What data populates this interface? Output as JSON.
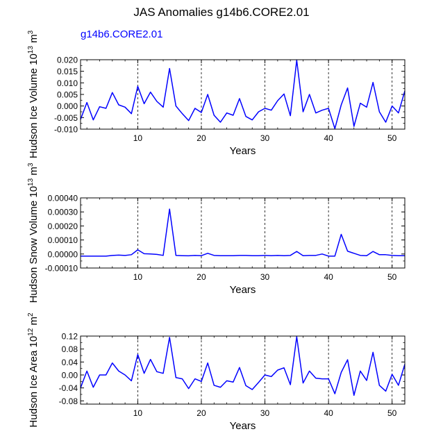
{
  "figure": {
    "title": "JAS Anomalies g14b6.CORE2.01",
    "case_label": "g14b6.CORE2.01",
    "case_label_color": "#0000ff",
    "line_color": "#0000ff"
  },
  "chart_data": [
    {
      "type": "line",
      "title": "",
      "xlabel": "Years",
      "ylabel": "Hudson Ice Volume",
      "ylabel_unit": "10",
      "ylabel_exp": "13",
      "ylabel_unit_tail": " m",
      "ylabel_unit_tail_exp": "3",
      "xlim": [
        1,
        52
      ],
      "ylim": [
        -0.01,
        0.02
      ],
      "xticks": [
        10,
        20,
        30,
        40,
        50
      ],
      "xtick_labels": [
        "10",
        "20",
        "30",
        "40",
        "50"
      ],
      "yticks": [
        -0.01,
        -0.005,
        0.0,
        0.005,
        0.01,
        0.015,
        0.02
      ],
      "ytick_labels": [
        "-0.010",
        "-0.005",
        "0.000",
        "0.005",
        "0.010",
        "0.015",
        "0.020"
      ],
      "x_gridlines": [
        10,
        20,
        30,
        40,
        50
      ],
      "series": [
        {
          "name": "g14b6.CORE2.01",
          "x": [
            1,
            2,
            3,
            4,
            5,
            6,
            7,
            8,
            9,
            10,
            11,
            12,
            13,
            14,
            15,
            16,
            17,
            18,
            19,
            20,
            21,
            22,
            23,
            24,
            25,
            26,
            27,
            28,
            29,
            30,
            31,
            32,
            33,
            34,
            35,
            36,
            37,
            38,
            39,
            40,
            41,
            42,
            43,
            44,
            45,
            46,
            47,
            48,
            49,
            50,
            51,
            52
          ],
          "values": [
            -0.0058,
            0.0015,
            -0.006,
            -0.0003,
            -0.001,
            0.0058,
            0.0005,
            -0.0005,
            -0.0033,
            0.0085,
            0.001,
            0.006,
            0.002,
            -0.0005,
            0.0162,
            0.0,
            -0.0033,
            -0.0063,
            -0.001,
            -0.0028,
            0.005,
            -0.004,
            -0.007,
            -0.003,
            -0.004,
            0.0032,
            -0.0045,
            -0.006,
            -0.0025,
            -0.001,
            -0.0018,
            0.0023,
            0.0052,
            -0.0042,
            0.0198,
            -0.0025,
            0.005,
            -0.003,
            -0.0018,
            -0.001,
            -0.0098,
            0.0005,
            0.0078,
            -0.0088,
            0.0012,
            -0.0005,
            0.0102,
            -0.0025,
            -0.007,
            0.0,
            -0.003,
            0.0065
          ]
        }
      ]
    },
    {
      "type": "line",
      "title": "",
      "xlabel": "Years",
      "ylabel": "Hudson Snow Volume",
      "ylabel_unit": "10",
      "ylabel_exp": "13",
      "ylabel_unit_tail": " m",
      "ylabel_unit_tail_exp": "3",
      "xlim": [
        1,
        52
      ],
      "ylim": [
        -0.0001,
        0.0004
      ],
      "xticks": [
        10,
        20,
        30,
        40,
        50
      ],
      "xtick_labels": [
        "10",
        "20",
        "30",
        "40",
        "50"
      ],
      "yticks": [
        -0.0001,
        0.0,
        0.0001,
        0.0002,
        0.0003,
        0.0004
      ],
      "ytick_labels": [
        "-0.00010",
        "0.00000",
        "0.00010",
        "0.00020",
        "0.00030",
        "0.00040"
      ],
      "x_gridlines": [
        10,
        20,
        30,
        40,
        50
      ],
      "series": [
        {
          "name": "g14b6.CORE2.01",
          "x": [
            1,
            2,
            3,
            4,
            5,
            6,
            7,
            8,
            9,
            10,
            11,
            12,
            13,
            14,
            15,
            16,
            17,
            18,
            19,
            20,
            21,
            22,
            23,
            24,
            25,
            26,
            27,
            28,
            29,
            30,
            31,
            32,
            33,
            34,
            35,
            36,
            37,
            38,
            39,
            40,
            41,
            42,
            43,
            44,
            45,
            46,
            47,
            48,
            49,
            50,
            51,
            52
          ],
          "values": [
            -1.5e-05,
            -1.5e-05,
            -1.5e-05,
            -1.5e-05,
            -1.5e-05,
            -1e-05,
            -8e-06,
            -1e-05,
            -5e-06,
            3e-05,
            2e-06,
            0.0,
            -3e-06,
            -1e-05,
            0.00032,
            -1e-05,
            -1.2e-05,
            -1.3e-05,
            -1e-05,
            -1.2e-05,
            5e-06,
            -1e-05,
            -1.2e-05,
            -1.2e-05,
            -1.2e-05,
            -1e-05,
            -1e-05,
            -1.2e-05,
            -1.2e-05,
            -1e-05,
            -1.2e-05,
            -1e-05,
            -1.2e-05,
            -1e-05,
            1.8e-05,
            -1.2e-05,
            -1e-05,
            -1e-05,
            0.0,
            -1.5e-05,
            -1.5e-05,
            0.00014,
            2e-05,
            5e-06,
            -1e-05,
            -1.2e-05,
            1.8e-05,
            -5e-06,
            -5e-06,
            -1e-05,
            -1.2e-05,
            -1.2e-05
          ]
        }
      ]
    },
    {
      "type": "line",
      "title": "",
      "xlabel": "Years",
      "ylabel": "Hudson Ice Area",
      "ylabel_unit": "10",
      "ylabel_exp": "12",
      "ylabel_unit_tail": " m",
      "ylabel_unit_tail_exp": "2",
      "xlim": [
        1,
        52
      ],
      "ylim": [
        -0.09,
        0.12
      ],
      "xticks": [
        10,
        20,
        30,
        40,
        50
      ],
      "xtick_labels": [
        "10",
        "20",
        "30",
        "40",
        "50"
      ],
      "yticks": [
        -0.08,
        -0.04,
        0.0,
        0.04,
        0.08,
        0.12
      ],
      "ytick_labels": [
        "-0.08",
        "-0.04",
        "0.00",
        "0.04",
        "0.08",
        "0.12"
      ],
      "x_gridlines": [
        10,
        20,
        30,
        40,
        50
      ],
      "series": [
        {
          "name": "g14b6.CORE2.01",
          "x": [
            1,
            2,
            3,
            4,
            5,
            6,
            7,
            8,
            9,
            10,
            11,
            12,
            13,
            14,
            15,
            16,
            17,
            18,
            19,
            20,
            21,
            22,
            23,
            24,
            25,
            26,
            27,
            28,
            29,
            30,
            31,
            32,
            33,
            34,
            35,
            36,
            37,
            38,
            39,
            40,
            41,
            42,
            43,
            44,
            45,
            46,
            47,
            48,
            49,
            50,
            51,
            52
          ],
          "values": [
            -0.04,
            0.012,
            -0.038,
            0.0,
            0.0,
            0.037,
            0.012,
            0.0,
            -0.018,
            0.063,
            0.005,
            0.048,
            0.01,
            0.005,
            0.116,
            -0.008,
            -0.012,
            -0.042,
            -0.012,
            -0.02,
            0.037,
            -0.032,
            -0.038,
            -0.018,
            -0.022,
            0.023,
            -0.033,
            -0.045,
            -0.023,
            0.0,
            -0.005,
            0.015,
            0.022,
            -0.03,
            0.118,
            -0.025,
            0.012,
            -0.01,
            -0.012,
            -0.012,
            -0.058,
            0.008,
            0.047,
            -0.063,
            0.012,
            -0.017,
            0.07,
            -0.032,
            -0.05,
            0.002,
            -0.032,
            0.033
          ]
        }
      ]
    }
  ]
}
